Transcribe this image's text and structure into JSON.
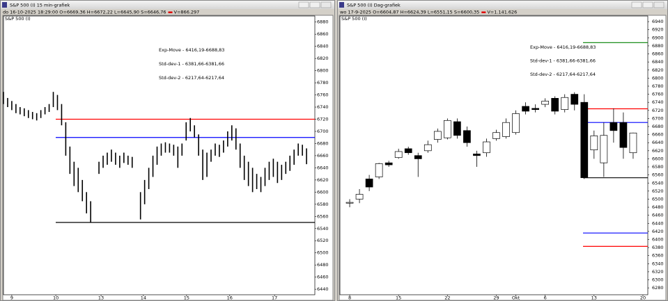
{
  "windows": [
    {
      "title": "S&P 500 (I) 15 min-grafiek",
      "info": "do 16-10-2025 18:29:00 O=6669,36 H=6672,22 L=6645,90 S=6646,76",
      "volume": "V=866.297",
      "corner_label": "S&P 500 (I)",
      "annotations": [
        {
          "text": "Exp-Move - 6416,19-6688,83",
          "color": "#0000ff"
        },
        {
          "text": "Std-dev-1 - 6381,66-6381,66",
          "color": "#ff0000"
        },
        {
          "text": "Std-dev-2 - 6217,64-6217,64",
          "color": "#008000"
        }
      ],
      "chart_data": {
        "type": "ohlc-bars",
        "high": [
          6765,
          6755,
          6750,
          6745,
          6740,
          6738,
          6735,
          6732,
          6730,
          6735,
          6740,
          6745,
          6765,
          6760,
          6745,
          6715,
          6675,
          6650,
          6640,
          6620,
          6600,
          6585,
          null,
          6650,
          6660,
          6665,
          6670,
          6665,
          6660,
          6665,
          6660,
          6658,
          null,
          6600,
          6620,
          6640,
          6660,
          6675,
          6680,
          6682,
          6680,
          6678,
          6675,
          6680,
          6715,
          6722,
          6710,
          6695,
          6670,
          6665,
          6670,
          6680,
          6678,
          6685,
          6700,
          6710,
          6705,
          6680,
          6660,
          6650,
          6640,
          6630,
          6625,
          6640,
          6650,
          6655,
          6650,
          6645,
          6650,
          6660,
          6670,
          6680,
          6678,
          6672
        ],
        "low": [
          6745,
          6740,
          6735,
          6730,
          6728,
          6725,
          6722,
          6720,
          6718,
          6722,
          6728,
          6732,
          6740,
          6735,
          6710,
          6660,
          6630,
          6610,
          6600,
          6585,
          6565,
          6550,
          null,
          6630,
          6640,
          6645,
          6650,
          6645,
          6640,
          6648,
          6645,
          6640,
          null,
          6555,
          6580,
          6605,
          6625,
          6645,
          6660,
          6665,
          6665,
          6660,
          6640,
          6660,
          6685,
          6700,
          6690,
          6660,
          6620,
          6625,
          6650,
          6660,
          6658,
          6665,
          6675,
          6685,
          6670,
          6640,
          6620,
          6610,
          6600,
          6605,
          6600,
          6610,
          6620,
          6625,
          6615,
          6620,
          6630,
          6635,
          6645,
          6660,
          6660,
          6646
        ],
        "xlim": [
          0,
          75
        ],
        "xticks": [
          {
            "value": 2,
            "label": "9"
          },
          {
            "value": 12.6,
            "label": "10"
          },
          {
            "value": 23.5,
            "label": "13"
          },
          {
            "value": 33.7,
            "label": "14"
          },
          {
            "value": 44.1,
            "label": "15"
          },
          {
            "value": 54.5,
            "label": "16"
          },
          {
            "value": 65.3,
            "label": "17"
          }
        ],
        "ylim": [
          6431,
          6890
        ],
        "yticks": [
          6880,
          6860,
          6840,
          6820,
          6800,
          6780,
          6760,
          6740,
          6720,
          6700,
          6680,
          6660,
          6640,
          6620,
          6600,
          6580,
          6560,
          6540,
          6520,
          6500,
          6480,
          6460,
          6440
        ],
        "levels": [
          {
            "value": 6720,
            "color": "#ff0000"
          },
          {
            "value": 6690,
            "color": "#0000ff"
          },
          {
            "value": 6550,
            "color": "#000000"
          }
        ]
      }
    },
    {
      "title": "S&P 500 (I) Dag-grafiek",
      "info": "wo 17-9-2025 O=6604,87 H=6624,39 L=6551,15 S=6600,35",
      "volume": "V=1.141.626",
      "corner_label": "S&P 500 (I)",
      "annotations": [
        {
          "text": "Exp-Move - 6416,19-6688,83",
          "color": "#0000ff"
        },
        {
          "text": "Std-dev-1 - 6381,66-6381,66",
          "color": "#ff0000"
        },
        {
          "text": "Std-dev-2 - 6217,64-6217,64",
          "color": "#008000"
        }
      ],
      "chart_data": {
        "type": "candlestick",
        "open": [
          6490,
          6500,
          6550,
          6555,
          6590,
          6603,
          6625,
          6608,
          6620,
          6648,
          6652,
          6692,
          6670,
          6612,
          6615,
          6650,
          6655,
          6665,
          6730,
          6725,
          6735,
          6750,
          6722,
          6760,
          6740,
          6622,
          6590,
          6690,
          6690,
          6615
        ],
        "close": [
          6492,
          6512,
          6530,
          6588,
          6585,
          6618,
          6615,
          6600,
          6635,
          6668,
          6695,
          6658,
          6640,
          6608,
          6642,
          6665,
          6690,
          6712,
          6718,
          6722,
          6743,
          6718,
          6752,
          6735,
          6553,
          6657,
          6658,
          6670,
          6628,
          6664
        ],
        "high": [
          6500,
          6525,
          6560,
          6590,
          6595,
          6625,
          6630,
          6615,
          6645,
          6675,
          6700,
          6700,
          6680,
          6620,
          6650,
          6672,
          6700,
          6720,
          6740,
          6735,
          6750,
          6755,
          6760,
          6765,
          6760,
          6670,
          6690,
          6725,
          6715,
          6665
        ],
        "low": [
          6480,
          6490,
          6520,
          6550,
          6580,
          6600,
          6610,
          6555,
          6615,
          6640,
          6648,
          6650,
          6630,
          6580,
          6605,
          6645,
          6650,
          6660,
          6710,
          6715,
          6728,
          6710,
          6715,
          6720,
          6550,
          6600,
          6555,
          6640,
          6600,
          6600
        ],
        "xlim": [
          -1,
          30.5
        ],
        "xticks": [
          {
            "value": 0,
            "label": "8"
          },
          {
            "value": 5,
            "label": "15"
          },
          {
            "value": 10,
            "label": "22"
          },
          {
            "value": 15,
            "label": "29"
          },
          {
            "value": 17,
            "label": "Okt"
          },
          {
            "value": 20,
            "label": "6"
          },
          {
            "value": 25,
            "label": "13"
          },
          {
            "value": 30,
            "label": "20"
          }
        ],
        "ylim": [
          6263,
          6954
        ],
        "yticks": [
          6940,
          6920,
          6900,
          6880,
          6860,
          6840,
          6820,
          6800,
          6780,
          6760,
          6740,
          6720,
          6700,
          6680,
          6660,
          6640,
          6620,
          6600,
          6580,
          6560,
          6540,
          6520,
          6500,
          6480,
          6460,
          6440,
          6420,
          6400,
          6380,
          6360,
          6340,
          6320,
          6300,
          6280
        ],
        "levels": [
          {
            "value": 6888,
            "color": "#008000"
          },
          {
            "value": 6724,
            "color": "#ff0000"
          },
          {
            "value": 6690,
            "color": "#0000ff"
          },
          {
            "value": 6553,
            "color": "#000000"
          },
          {
            "value": 6416,
            "color": "#0000ff"
          },
          {
            "value": 6383,
            "color": "#ff0000"
          }
        ]
      }
    }
  ]
}
